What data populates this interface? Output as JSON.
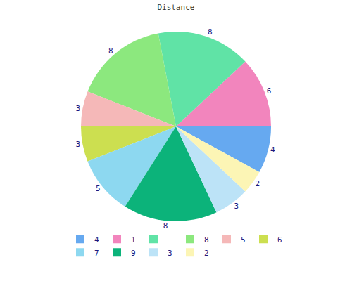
{
  "chart_data": {
    "type": "pie",
    "title": "Distance",
    "categories": [
      "4",
      "1",
      null,
      "8",
      "5",
      "6",
      "7",
      "9",
      "3",
      "2"
    ],
    "values": [
      4,
      6,
      8,
      8,
      3,
      3,
      5,
      8,
      3,
      2
    ],
    "colors": [
      "#66a9f0",
      "#f285bd",
      "#60e3a6",
      "#8ce87e",
      "#f5b8b8",
      "#ccdf50",
      "#8dd8f0",
      "#0cb37a",
      "#bce3f7",
      "#fcf5b5"
    ],
    "data_labels": true,
    "legend": "bottom"
  }
}
